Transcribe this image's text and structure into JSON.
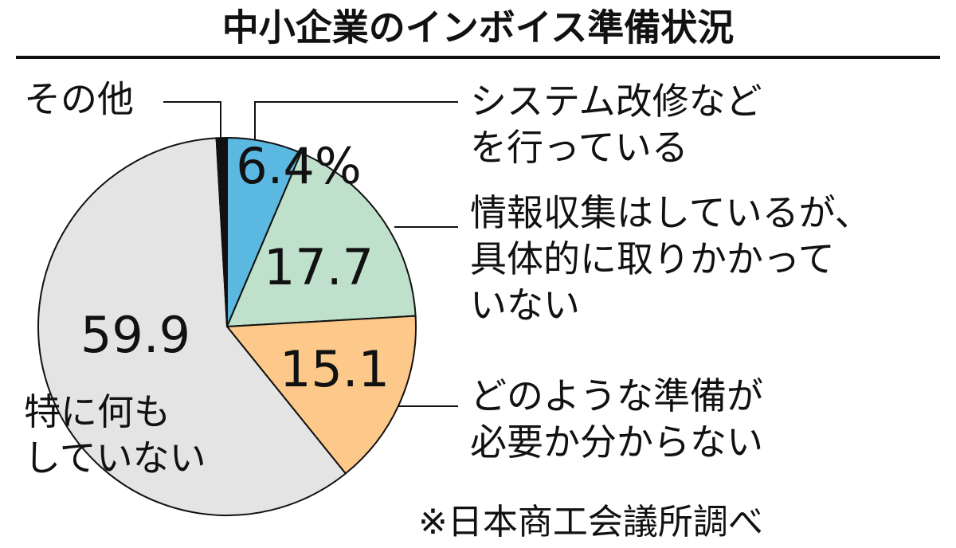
{
  "chart_data": {
    "type": "pie",
    "title": "中小企業のインボイス準備状況",
    "categories": [
      "システム改修など\nを行っている",
      "情報収集はしているが、\n具体的に取りかかって\nいない",
      "どのような準備が\n必要か分からない",
      "特に何も\nしていない",
      "その他"
    ],
    "values": [
      6.4,
      17.7,
      15.1,
      59.9,
      0.9
    ],
    "value_labels": [
      "6.4%",
      "17.7",
      "15.1",
      "59.9",
      null
    ],
    "colors": [
      "#5bb8e0",
      "#bfe0cb",
      "#fcc98a",
      "#e4e4e4",
      "#111111"
    ],
    "source": "※日本商工会議所調べ"
  }
}
